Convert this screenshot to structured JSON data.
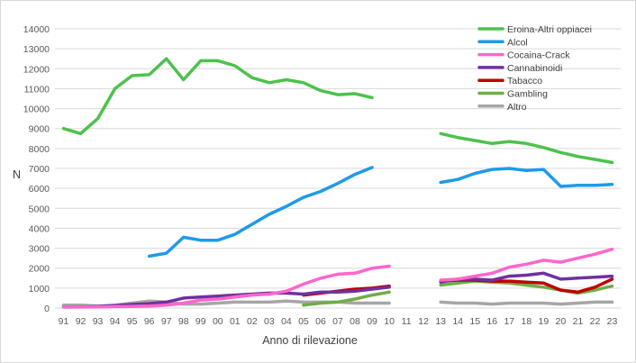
{
  "chart_data": {
    "type": "line",
    "title": "",
    "xlabel": "Anno di rilevazione",
    "ylabel": "N",
    "ylim": [
      0,
      14000
    ],
    "yticks": [
      0,
      1000,
      2000,
      3000,
      4000,
      5000,
      6000,
      7000,
      8000,
      9000,
      10000,
      11000,
      12000,
      13000,
      14000
    ],
    "grid": true,
    "legend_position": "top-right",
    "categories": [
      "91",
      "92",
      "93",
      "94",
      "95",
      "96",
      "97",
      "98",
      "99",
      "00",
      "01",
      "02",
      "03",
      "04",
      "05",
      "06",
      "07",
      "08",
      "09",
      "10",
      "11",
      "12",
      "13",
      "14",
      "15",
      "16",
      "17",
      "18",
      "19",
      "20",
      "21",
      "22",
      "23"
    ],
    "series": [
      {
        "name": "Eroina-Altri oppiacei",
        "color": "#4dc24d",
        "values": [
          9000,
          8750,
          9500,
          11000,
          11650,
          11700,
          12500,
          11450,
          12400,
          12400,
          12150,
          11550,
          11300,
          11450,
          11300,
          10900,
          10700,
          10750,
          10550,
          null,
          null,
          null,
          8750,
          8550,
          8400,
          8250,
          8350,
          8250,
          8050,
          7800,
          7600,
          7450,
          7300
        ]
      },
      {
        "name": "Alcol",
        "color": "#1f9ae8",
        "values": [
          null,
          null,
          null,
          null,
          null,
          2600,
          2750,
          3550,
          3400,
          3400,
          3700,
          4200,
          4700,
          5100,
          5550,
          5850,
          6250,
          6700,
          7050,
          null,
          null,
          null,
          6300,
          6450,
          6750,
          6950,
          7000,
          6900,
          6950,
          6100,
          6150,
          6150,
          6200
        ]
      },
      {
        "name": "Cocaina-Crack",
        "color": "#ff66cc",
        "values": [
          50,
          50,
          60,
          70,
          80,
          100,
          150,
          250,
          400,
          450,
          550,
          650,
          700,
          850,
          1200,
          1500,
          1700,
          1750,
          2000,
          2100,
          null,
          null,
          1400,
          1450,
          1600,
          1750,
          2050,
          2200,
          2400,
          2300,
          2500,
          2700,
          2950
        ]
      },
      {
        "name": "Cannabinoidi",
        "color": "#7030a0",
        "values": [
          50,
          60,
          80,
          120,
          180,
          220,
          300,
          500,
          550,
          600,
          650,
          700,
          750,
          750,
          700,
          800,
          800,
          850,
          950,
          1050,
          null,
          null,
          1300,
          1450,
          1450,
          1400,
          1600,
          1650,
          1750,
          1450,
          1500,
          1550,
          1600
        ]
      },
      {
        "name": "Tabacco",
        "color": "#c00000",
        "values": [
          null,
          null,
          null,
          null,
          null,
          null,
          null,
          null,
          null,
          null,
          null,
          null,
          null,
          null,
          650,
          750,
          850,
          950,
          1000,
          1100,
          null,
          null,
          1350,
          1400,
          1400,
          1350,
          1350,
          1300,
          1250,
          900,
          800,
          1050,
          1450
        ]
      },
      {
        "name": "Gambling",
        "color": "#70ad47",
        "values": [
          null,
          null,
          null,
          null,
          null,
          null,
          null,
          null,
          null,
          null,
          null,
          null,
          null,
          null,
          150,
          250,
          300,
          450,
          650,
          800,
          null,
          null,
          1150,
          1250,
          1350,
          1300,
          1250,
          1150,
          1050,
          900,
          750,
          900,
          1100
        ]
      },
      {
        "name": "Altro",
        "color": "#a6a6a6",
        "values": [
          150,
          150,
          100,
          150,
          250,
          350,
          300,
          200,
          200,
          250,
          300,
          300,
          300,
          350,
          300,
          300,
          300,
          250,
          250,
          250,
          null,
          null,
          300,
          250,
          250,
          200,
          250,
          250,
          250,
          200,
          250,
          300,
          300
        ]
      }
    ]
  }
}
